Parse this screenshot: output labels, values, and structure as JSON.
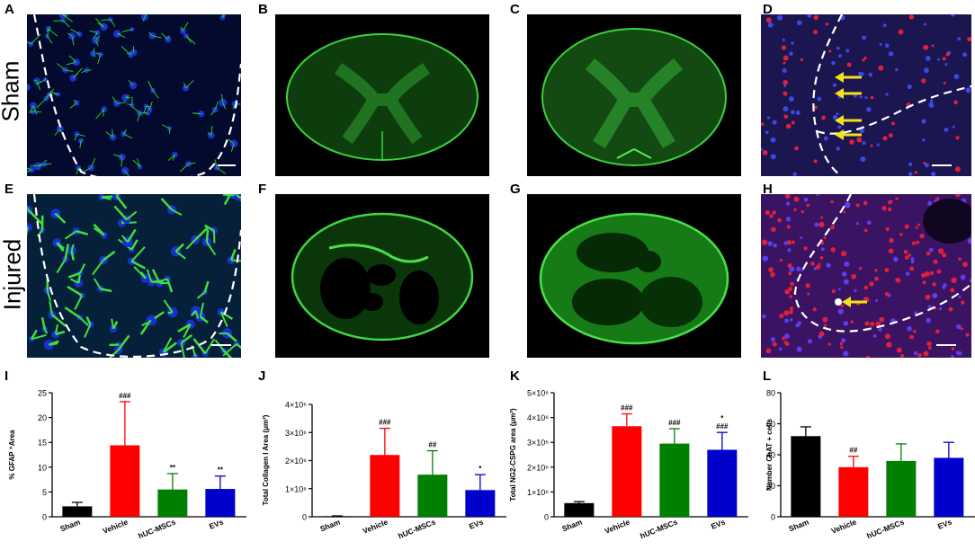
{
  "row_labels": {
    "top": "Sham",
    "bottom": "Injured"
  },
  "panel_letters": {
    "A": "A",
    "B": "B",
    "C": "C",
    "D": "D",
    "E": "E",
    "F": "F",
    "G": "G",
    "H": "H",
    "I": "I",
    "J": "J",
    "K": "K",
    "L": "L"
  },
  "colors": {
    "sham": "#000000",
    "vehicle": "#ff0000",
    "huc_mscs": "#008000",
    "evs": "#0000cc",
    "fluor_green": "#22cc22",
    "nuclei_blue": "#1a2fd0",
    "chat_red": "#e0203a",
    "arrow_yellow": "#f2e21a"
  },
  "chart_data": [
    {
      "panel": "I",
      "type": "bar",
      "categories": [
        "Sham",
        "Vehicle",
        "hUC-MSCs",
        "EVs"
      ],
      "values": [
        2.1,
        14.4,
        5.5,
        5.6
      ],
      "errors": [
        0.8,
        8.8,
        3.2,
        2.6
      ],
      "annotations": [
        "",
        "###",
        "**",
        "**"
      ],
      "ylabel": "% GFAP ⁺Area",
      "ylim": [
        0,
        25
      ],
      "yticks": [
        "0",
        "5",
        "10",
        "15",
        "20",
        "25"
      ],
      "ytick_values": [
        0,
        5,
        10,
        15,
        20,
        25
      ]
    },
    {
      "panel": "J",
      "type": "bar",
      "categories": [
        "Sham",
        "Vehicle",
        "hUC-MSCs",
        "EVs"
      ],
      "values": [
        20000,
        2200000,
        1500000,
        950000
      ],
      "errors": [
        10000,
        950000,
        850000,
        550000
      ],
      "annotations": [
        "",
        "###",
        "##",
        "*"
      ],
      "ylabel": "Total Collagen I Area (μm²)",
      "ylim": [
        0,
        4000000
      ],
      "yticks": [
        "0",
        "1×10⁶",
        "2×10⁶",
        "3×10⁶",
        "4×10⁶"
      ],
      "ytick_values": [
        0,
        1000000,
        2000000,
        3000000,
        4000000
      ]
    },
    {
      "panel": "K",
      "type": "bar",
      "categories": [
        "Sham",
        "Vehicle",
        "hUC-MSCs",
        "EVs"
      ],
      "values": [
        550000,
        3650000,
        2950000,
        2700000
      ],
      "errors": [
        60000,
        500000,
        600000,
        700000
      ],
      "annotations": [
        "",
        "###",
        "###",
        "*\n###"
      ],
      "ylabel": "Total NG2-CSPG area (μm²)",
      "ylim": [
        0,
        5000000
      ],
      "yticks": [
        "0",
        "1×10⁶",
        "2×10⁶",
        "3×10⁶",
        "4×10⁶",
        "5×10⁶"
      ],
      "ytick_values": [
        0,
        1000000,
        2000000,
        3000000,
        4000000,
        5000000
      ]
    },
    {
      "panel": "L",
      "type": "bar",
      "categories": [
        "Sham",
        "Vehicle",
        "hUC-MSCs",
        "EVs"
      ],
      "values": [
        52,
        32,
        36,
        38
      ],
      "errors": [
        6,
        7,
        11,
        10
      ],
      "annotations": [
        "",
        "##",
        "",
        ""
      ],
      "ylabel": "Number ChAT + cells",
      "ylim": [
        0,
        80
      ],
      "yticks": [
        "0",
        "20",
        "40",
        "60",
        "80"
      ],
      "ytick_values": [
        0,
        20,
        40,
        60,
        80
      ]
    }
  ]
}
